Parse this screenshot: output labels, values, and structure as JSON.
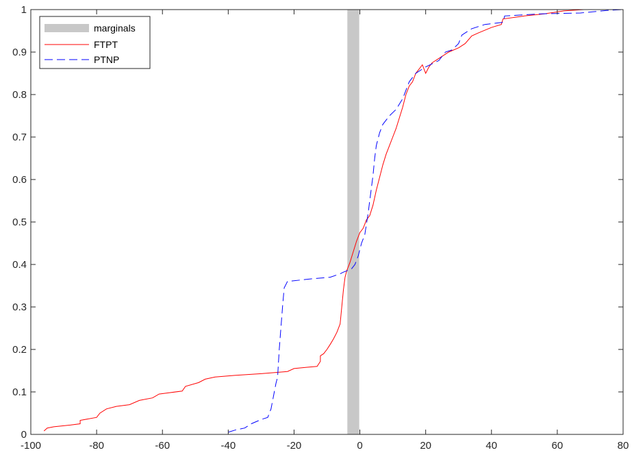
{
  "chart_data": {
    "type": "line",
    "title": "",
    "xlabel": "",
    "ylabel": "",
    "xlim": [
      -100,
      80
    ],
    "ylim": [
      0,
      1
    ],
    "x_ticks": [
      -100,
      -80,
      -60,
      -40,
      -20,
      0,
      20,
      40,
      60,
      80
    ],
    "y_ticks": [
      0,
      0.1,
      0.2,
      0.3,
      0.4,
      0.5,
      0.6,
      0.7,
      0.8,
      0.9,
      1
    ],
    "x_tick_labels": [
      "-100",
      "-80",
      "-60",
      "-40",
      "-20",
      "0",
      "20",
      "40",
      "60",
      "80"
    ],
    "y_tick_labels": [
      "0",
      "0.1",
      "0.2",
      "0.3",
      "0.4",
      "0.5",
      "0.6",
      "0.7",
      "0.8",
      "0.9",
      "1"
    ],
    "grid": false,
    "legend_position": "top-left",
    "marginal_band": {
      "name": "marginals",
      "x_range": [
        -3.8,
        -0.2
      ],
      "color": "#c8c8c8"
    },
    "series": [
      {
        "name": "FTPT",
        "color": "#ff0000",
        "style": "solid",
        "points": [
          [
            -96,
            0.008
          ],
          [
            -95,
            0.015
          ],
          [
            -93,
            0.018
          ],
          [
            -88,
            0.022
          ],
          [
            -85,
            0.025
          ],
          [
            -85,
            0.033
          ],
          [
            -80,
            0.04
          ],
          [
            -79,
            0.05
          ],
          [
            -77,
            0.06
          ],
          [
            -74,
            0.066
          ],
          [
            -70,
            0.07
          ],
          [
            -67,
            0.08
          ],
          [
            -63,
            0.086
          ],
          [
            -61,
            0.095
          ],
          [
            -58,
            0.098
          ],
          [
            -54,
            0.102
          ],
          [
            -53,
            0.113
          ],
          [
            -49,
            0.122
          ],
          [
            -47,
            0.13
          ],
          [
            -44,
            0.135
          ],
          [
            -38,
            0.139
          ],
          [
            -30,
            0.143
          ],
          [
            -22,
            0.148
          ],
          [
            -20,
            0.155
          ],
          [
            -16,
            0.158
          ],
          [
            -13,
            0.16
          ],
          [
            -12,
            0.172
          ],
          [
            -12,
            0.185
          ],
          [
            -11,
            0.19
          ],
          [
            -10,
            0.2
          ],
          [
            -9,
            0.212
          ],
          [
            -8,
            0.225
          ],
          [
            -7,
            0.24
          ],
          [
            -6,
            0.26
          ],
          [
            -5.5,
            0.3
          ],
          [
            -5,
            0.34
          ],
          [
            -4.5,
            0.37
          ],
          [
            -4,
            0.385
          ],
          [
            -3,
            0.405
          ],
          [
            -2,
            0.43
          ],
          [
            -1,
            0.455
          ],
          [
            0,
            0.475
          ],
          [
            1,
            0.485
          ],
          [
            2,
            0.505
          ],
          [
            3,
            0.515
          ],
          [
            4,
            0.54
          ],
          [
            5,
            0.575
          ],
          [
            6,
            0.605
          ],
          [
            7,
            0.635
          ],
          [
            8,
            0.66
          ],
          [
            9,
            0.68
          ],
          [
            10,
            0.7
          ],
          [
            11,
            0.72
          ],
          [
            12,
            0.745
          ],
          [
            13,
            0.77
          ],
          [
            14,
            0.8
          ],
          [
            15,
            0.82
          ],
          [
            16,
            0.83
          ],
          [
            17,
            0.85
          ],
          [
            18,
            0.86
          ],
          [
            19,
            0.87
          ],
          [
            20,
            0.85
          ],
          [
            21,
            0.865
          ],
          [
            22,
            0.875
          ],
          [
            23,
            0.88
          ],
          [
            24,
            0.885
          ],
          [
            25,
            0.89
          ],
          [
            27,
            0.9
          ],
          [
            30,
            0.91
          ],
          [
            32,
            0.92
          ],
          [
            34,
            0.938
          ],
          [
            36,
            0.945
          ],
          [
            40,
            0.958
          ],
          [
            43,
            0.965
          ],
          [
            43.5,
            0.978
          ],
          [
            50,
            0.985
          ],
          [
            56,
            0.99
          ],
          [
            62,
            0.997
          ],
          [
            68,
            1.0
          ],
          [
            80,
            1.0
          ]
        ]
      },
      {
        "name": "PTNP",
        "color": "#0000ff",
        "style": "dashed",
        "points": [
          [
            -40,
            0.005
          ],
          [
            -38,
            0.01
          ],
          [
            -35,
            0.015
          ],
          [
            -33,
            0.025
          ],
          [
            -30,
            0.035
          ],
          [
            -28,
            0.04
          ],
          [
            -27,
            0.06
          ],
          [
            -26,
            0.1
          ],
          [
            -25.5,
            0.12
          ],
          [
            -25,
            0.135
          ],
          [
            -24.5,
            0.2
          ],
          [
            -24,
            0.25
          ],
          [
            -23.5,
            0.3
          ],
          [
            -23,
            0.345
          ],
          [
            -22,
            0.36
          ],
          [
            -15,
            0.366
          ],
          [
            -9,
            0.37
          ],
          [
            -6,
            0.378
          ],
          [
            -5,
            0.382
          ],
          [
            -4,
            0.385
          ],
          [
            -2.5,
            0.39
          ],
          [
            -1.5,
            0.4
          ],
          [
            -0.5,
            0.42
          ],
          [
            0.5,
            0.45
          ],
          [
            1.5,
            0.47
          ],
          [
            2.5,
            0.52
          ],
          [
            3,
            0.55
          ],
          [
            3.5,
            0.58
          ],
          [
            4,
            0.61
          ],
          [
            4.5,
            0.65
          ],
          [
            5,
            0.68
          ],
          [
            6,
            0.71
          ],
          [
            7,
            0.73
          ],
          [
            9,
            0.75
          ],
          [
            11,
            0.765
          ],
          [
            13,
            0.79
          ],
          [
            15,
            0.83
          ],
          [
            17,
            0.85
          ],
          [
            20,
            0.865
          ],
          [
            24,
            0.88
          ],
          [
            26,
            0.9
          ],
          [
            28,
            0.905
          ],
          [
            30,
            0.92
          ],
          [
            31,
            0.94
          ],
          [
            34,
            0.955
          ],
          [
            38,
            0.965
          ],
          [
            43.5,
            0.97
          ],
          [
            44,
            0.985
          ],
          [
            55,
            0.99
          ],
          [
            67,
            0.992
          ],
          [
            75,
            0.998
          ],
          [
            80,
            1.0
          ]
        ]
      }
    ]
  }
}
